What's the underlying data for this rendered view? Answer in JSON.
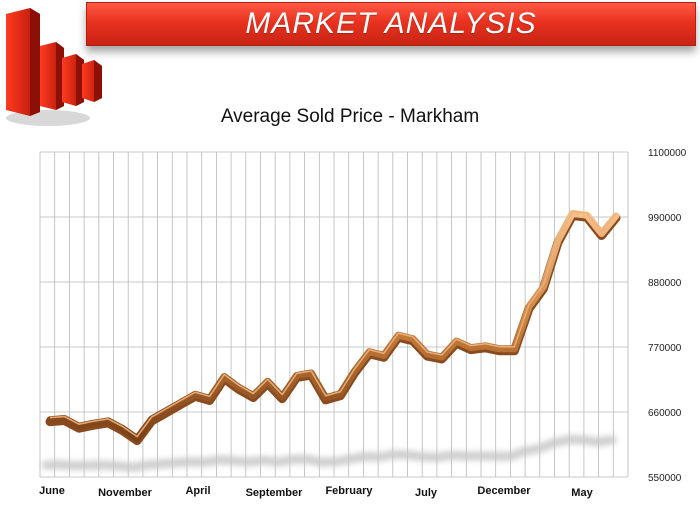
{
  "header": {
    "title": "MARKET ANALYSIS",
    "logo_icon": "red-bar-chart-icon"
  },
  "colors": {
    "banner": "#e8321f",
    "line_light": "#f0b07a",
    "line_dark": "#8a4a1f",
    "grid": "#b8b8b8"
  },
  "chart_data": {
    "type": "line",
    "title": "Average Sold Price - Markham",
    "ylim": [
      550000,
      1100000
    ],
    "y_ticks": [
      "1100000",
      "990000",
      "880000",
      "770000",
      "660000",
      "550000"
    ],
    "x_tick_labels": [
      "June",
      "November",
      "April",
      "September",
      "February",
      "July",
      "December",
      "May"
    ],
    "grid": true,
    "series": [
      {
        "values": [
          647000,
          649000,
          636000,
          641000,
          645000,
          632000,
          615000,
          648000,
          662000,
          676000,
          690000,
          683000,
          720000,
          702000,
          688000,
          712000,
          686000,
          722000,
          726000,
          684000,
          691000,
          730000,
          762000,
          756000,
          790000,
          784000,
          758000,
          753000,
          780000,
          769000,
          772000,
          767000,
          767000,
          838000,
          872000,
          950000,
          996000,
          993000,
          962000,
          992000
        ]
      }
    ]
  }
}
